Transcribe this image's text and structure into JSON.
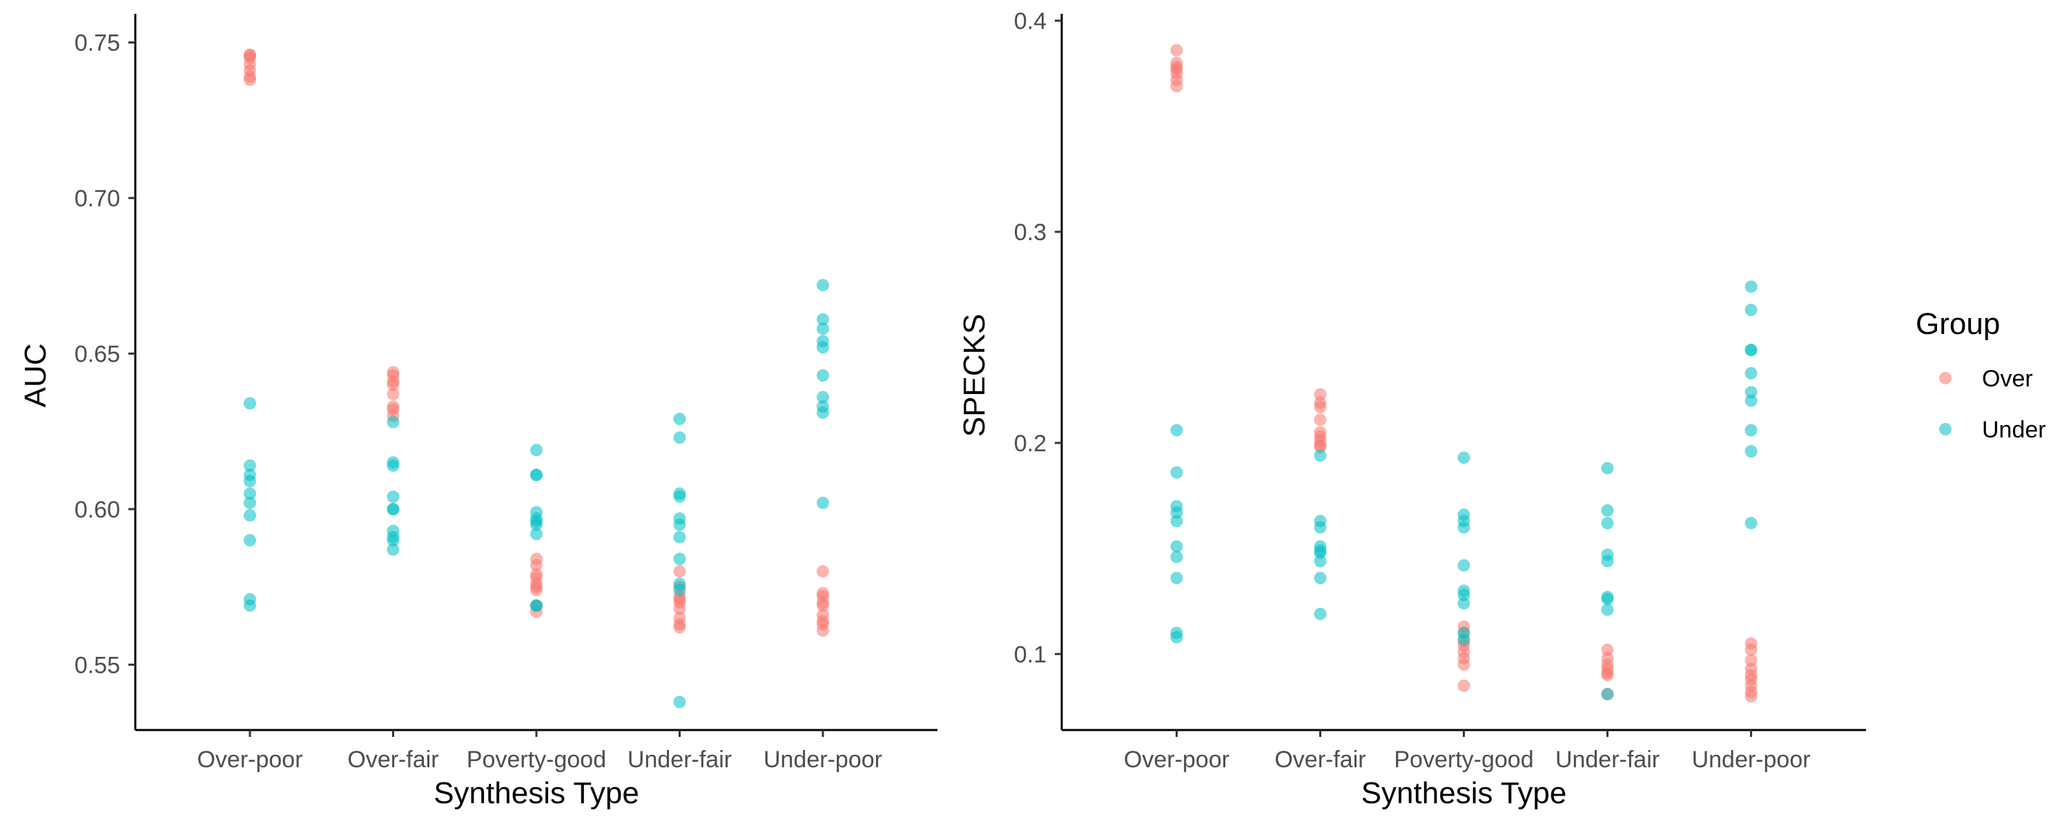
{
  "colors": {
    "Over": "#F8766D",
    "Under": "#00BFC4"
  },
  "legend": {
    "title": "Group",
    "entries": [
      {
        "label": "Over",
        "color": "#F8766D"
      },
      {
        "label": "Under",
        "color": "#00BFC4"
      }
    ]
  },
  "chart_data": [
    {
      "type": "scatter",
      "title": "",
      "xlabel": "Synthesis Type",
      "ylabel": "AUC",
      "categories": [
        "Over-poor",
        "Over-fair",
        "Poverty-good",
        "Under-fair",
        "Under-poor"
      ],
      "yticks": [
        0.55,
        0.6,
        0.65,
        0.7,
        0.75
      ],
      "ytick_labels": [
        "0.55",
        "0.60",
        "0.65",
        "0.70",
        "0.75"
      ],
      "ylim": [
        0.529,
        0.757
      ],
      "grid": false,
      "series": [
        {
          "name": "Over",
          "values": [
            [
              0.746,
              0.746,
              0.745,
              0.743,
              0.741,
              0.739,
              0.738
            ],
            [
              0.644,
              0.643,
              0.641,
              0.64,
              0.637,
              0.633,
              0.632,
              0.63
            ],
            [
              0.584,
              0.582,
              0.579,
              0.578,
              0.576,
              0.575,
              0.574,
              0.569,
              0.567
            ],
            [
              0.58,
              0.575,
              0.572,
              0.571,
              0.57,
              0.568,
              0.565,
              0.563,
              0.562
            ],
            [
              0.58,
              0.573,
              0.572,
              0.57,
              0.569,
              0.566,
              0.564,
              0.563,
              0.561
            ]
          ]
        },
        {
          "name": "Under",
          "values": [
            [
              0.634,
              0.614,
              0.611,
              0.609,
              0.605,
              0.602,
              0.598,
              0.59,
              0.571,
              0.569
            ],
            [
              0.628,
              0.615,
              0.614,
              0.604,
              0.6,
              0.6,
              0.593,
              0.591,
              0.59,
              0.587
            ],
            [
              0.619,
              0.611,
              0.611,
              0.599,
              0.597,
              0.596,
              0.595,
              0.592,
              0.569,
              0.569
            ],
            [
              0.629,
              0.623,
              0.605,
              0.604,
              0.597,
              0.595,
              0.591,
              0.584,
              0.576,
              0.574,
              0.538
            ],
            [
              0.672,
              0.661,
              0.658,
              0.654,
              0.652,
              0.643,
              0.636,
              0.633,
              0.631,
              0.602
            ]
          ]
        }
      ]
    },
    {
      "type": "scatter",
      "title": "",
      "xlabel": "Synthesis Type",
      "ylabel": "SPECKS",
      "categories": [
        "Over-poor",
        "Over-fair",
        "Poverty-good",
        "Under-fair",
        "Under-poor"
      ],
      "yticks": [
        0.1,
        0.2,
        0.3,
        0.4
      ],
      "ytick_labels": [
        "0.1",
        "0.2",
        "0.3",
        "0.4"
      ],
      "ylim": [
        0.064,
        0.4
      ],
      "grid": false,
      "series": [
        {
          "name": "Over",
          "values": [
            [
              0.386,
              0.38,
              0.378,
              0.377,
              0.375,
              0.372,
              0.369
            ],
            [
              0.223,
              0.219,
              0.217,
              0.211,
              0.205,
              0.203,
              0.201,
              0.199,
              0.198
            ],
            [
              0.113,
              0.11,
              0.106,
              0.104,
              0.101,
              0.098,
              0.095,
              0.085
            ],
            [
              0.102,
              0.098,
              0.095,
              0.093,
              0.091,
              0.09,
              0.081
            ],
            [
              0.105,
              0.102,
              0.097,
              0.093,
              0.09,
              0.088,
              0.085,
              0.082,
              0.08
            ]
          ]
        },
        {
          "name": "Under",
          "values": [
            [
              0.206,
              0.186,
              0.17,
              0.167,
              0.163,
              0.151,
              0.146,
              0.136,
              0.11,
              0.108
            ],
            [
              0.194,
              0.163,
              0.16,
              0.151,
              0.149,
              0.148,
              0.144,
              0.136,
              0.119
            ],
            [
              0.193,
              0.166,
              0.163,
              0.16,
              0.142,
              0.13,
              0.128,
              0.124,
              0.11,
              0.107
            ],
            [
              0.188,
              0.168,
              0.162,
              0.147,
              0.144,
              0.127,
              0.126,
              0.121,
              0.081
            ],
            [
              0.274,
              0.263,
              0.244,
              0.244,
              0.233,
              0.224,
              0.22,
              0.206,
              0.196,
              0.162
            ]
          ]
        }
      ]
    }
  ]
}
